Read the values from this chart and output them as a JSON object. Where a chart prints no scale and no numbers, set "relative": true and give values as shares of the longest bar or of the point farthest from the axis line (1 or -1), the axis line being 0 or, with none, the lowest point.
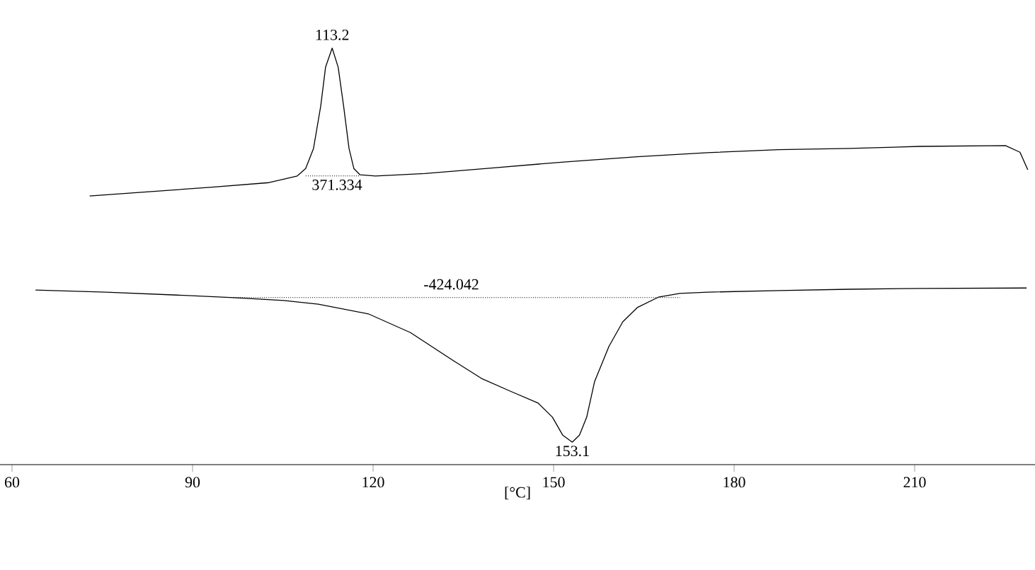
{
  "chart_data": {
    "type": "line",
    "relative": true,
    "xlabel": "[°C]",
    "xlim": [
      58,
      230
    ],
    "xticks": [
      60,
      90,
      120,
      150,
      180,
      210
    ],
    "marker": "none",
    "series": [
      {
        "color": "#000000",
        "line_style": "solid",
        "x": [
          72.9,
          81.5,
          93.3,
          102.7,
          107.4,
          108.8,
          110.1,
          111.3,
          112.1,
          113.2,
          114.2,
          115.1,
          116.0,
          116.8,
          117.8,
          120.4,
          128.6,
          140.4,
          152.1,
          163.9,
          175.6,
          187.4,
          199.2,
          210.9,
          225.1,
          227.5,
          228.8
        ],
        "values": [
          0.645,
          0.654,
          0.666,
          0.677,
          0.693,
          0.711,
          0.759,
          0.861,
          0.954,
          1.0,
          0.954,
          0.861,
          0.759,
          0.711,
          0.696,
          0.693,
          0.699,
          0.713,
          0.727,
          0.739,
          0.749,
          0.756,
          0.759,
          0.764,
          0.766,
          0.75,
          0.708
        ]
      },
      {
        "color": "#000000",
        "line_style": "dotted",
        "x": [
          108.8,
          117.8
        ],
        "values": [
          0.693,
          0.693
        ]
      },
      {
        "color": "#000000",
        "line_style": "solid",
        "x": [
          63.9,
          75.6,
          87.4,
          96.8,
          105.1,
          110.9,
          119.2,
          126.2,
          133.3,
          138.0,
          142.7,
          147.4,
          149.8,
          151.5,
          153.1,
          154.3,
          155.5,
          156.8,
          159.2,
          161.5,
          163.9,
          167.4,
          171.0,
          175.6,
          187.4,
          199.2,
          210.9,
          228.6
        ],
        "values": [
          0.419,
          0.414,
          0.407,
          0.401,
          0.394,
          0.385,
          0.362,
          0.317,
          0.25,
          0.207,
          0.177,
          0.148,
          0.114,
          0.071,
          0.054,
          0.071,
          0.114,
          0.199,
          0.284,
          0.343,
          0.377,
          0.402,
          0.411,
          0.414,
          0.418,
          0.421,
          0.423,
          0.424
        ]
      },
      {
        "color": "#000000",
        "line_style": "dotted",
        "x": [
          96.8,
          171.0
        ],
        "values": [
          0.401,
          0.401
        ]
      }
    ],
    "annotations": [
      {
        "text": "113.2",
        "x": 113.2,
        "y": 1.0
      },
      {
        "text": "371.334",
        "x": 114,
        "y": 0.693
      },
      {
        "text": "-424.042",
        "x": 133,
        "y": 0.401
      },
      {
        "text": "153.1",
        "x": 153.1,
        "y": 0.054
      }
    ]
  }
}
